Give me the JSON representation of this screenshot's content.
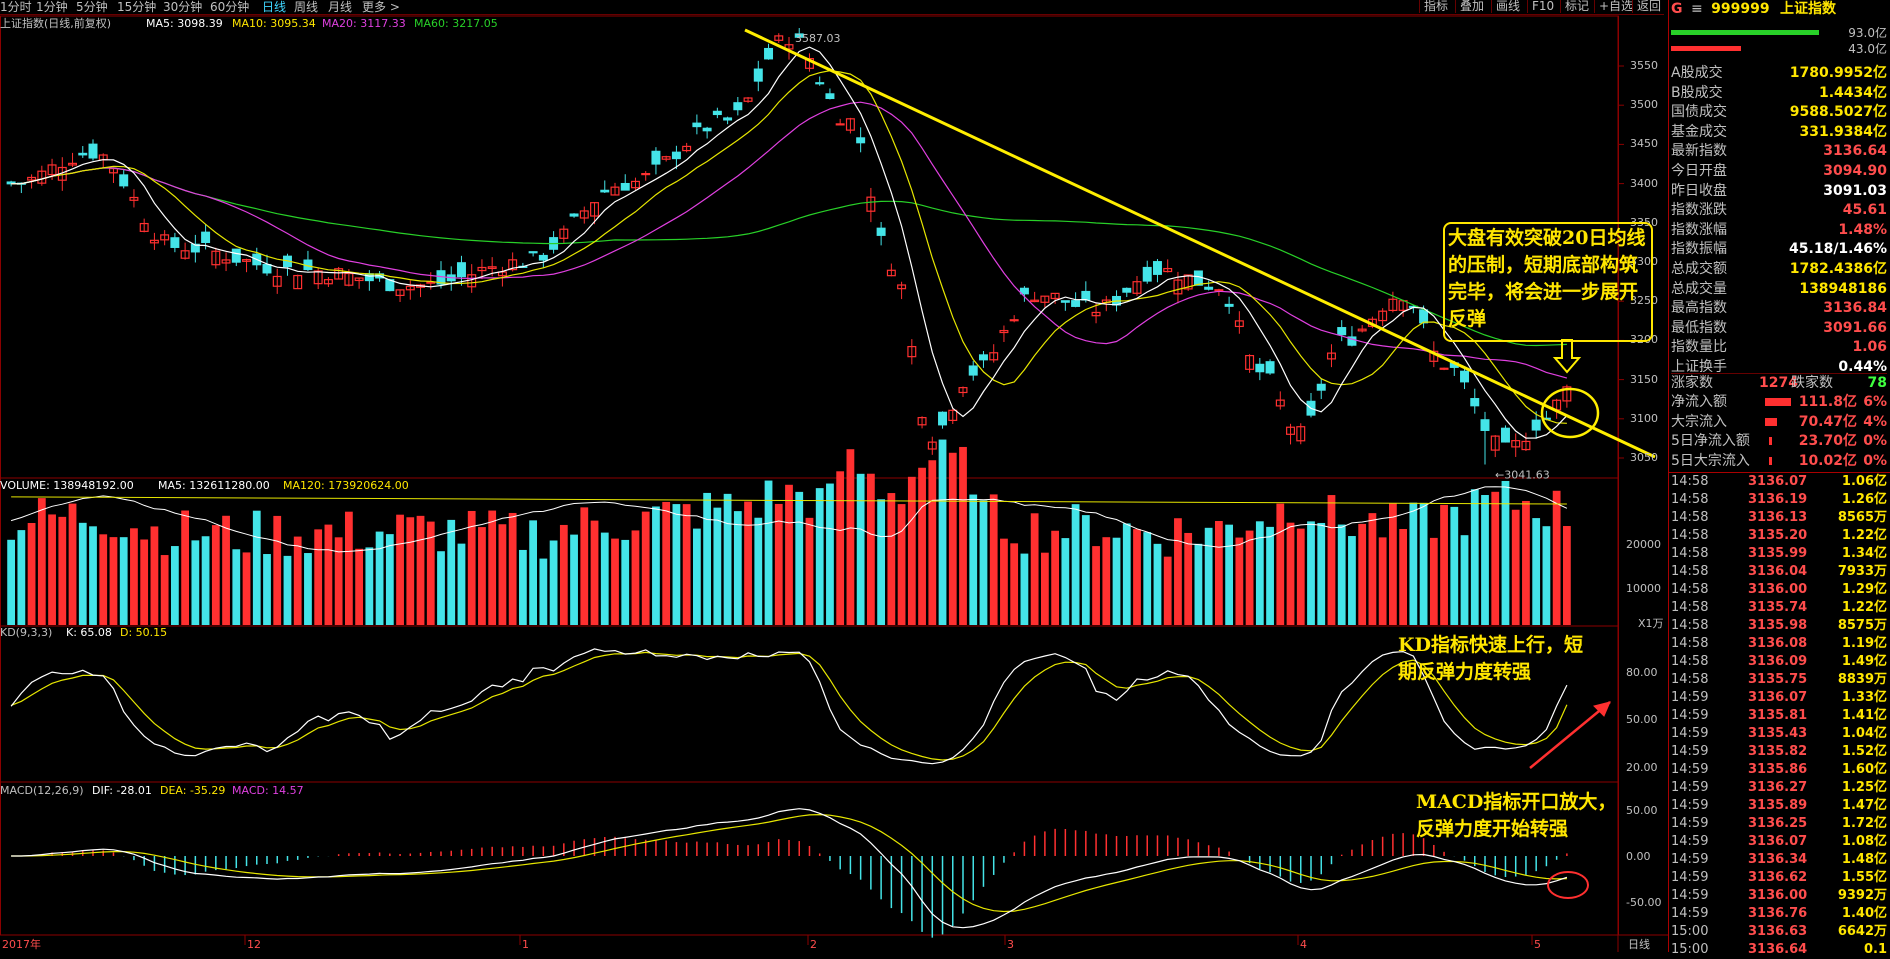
{
  "topbar": {
    "timeframes": [
      "1分时",
      "1分钟",
      "5分钟",
      "15分钟",
      "30分钟",
      "60分钟",
      "日线",
      "周线",
      "月线",
      "更多 >"
    ],
    "active": "日线",
    "right_buttons": [
      "指标",
      "叠加",
      "画线",
      "F10",
      "标记",
      "+自选",
      "返回"
    ]
  },
  "price_panel": {
    "title": "上证指数(日线,前复权)",
    "ma_labels": [
      {
        "text": "MA5: 3098.39",
        "color": "#ffffff"
      },
      {
        "text": "MA10: 3095.34",
        "color": "#ffe600"
      },
      {
        "text": "MA20: 3117.33",
        "color": "#e040e0"
      },
      {
        "text": "MA60: 3217.05",
        "color": "#28d028"
      }
    ],
    "high_mark": "3587.03",
    "low_mark": "3041.63",
    "y_ticks": [
      "3550",
      "3500",
      "3450",
      "3400",
      "3350",
      "3300",
      "3250",
      "3200",
      "3150",
      "3100",
      "3050"
    ]
  },
  "volume_panel": {
    "labels": [
      {
        "text": "VOLUME: 138948192.00",
        "color": "#ffffff"
      },
      {
        "text": "MA5: 132611280.00",
        "color": "#ffffff"
      },
      {
        "text": "MA120: 173920624.00",
        "color": "#ffe600"
      }
    ],
    "y_ticks": [
      "20000",
      "10000"
    ],
    "unit": "X1万"
  },
  "kd_panel": {
    "labels": [
      {
        "text": "KD(9,3,3)",
        "color": "#c0c0c0"
      },
      {
        "text": "K: 65.08",
        "color": "#ffffff"
      },
      {
        "text": "D: 50.15",
        "color": "#ffe600"
      }
    ],
    "y_ticks": [
      "80.00",
      "50.00",
      "20.00"
    ]
  },
  "macd_panel": {
    "labels": [
      {
        "text": "MACD(12,26,9)",
        "color": "#c0c0c0"
      },
      {
        "text": "DIF: -28.01",
        "color": "#ffffff"
      },
      {
        "text": "DEA: -35.29",
        "color": "#ffe600"
      },
      {
        "text": "MACD: 14.57",
        "color": "#e040e0"
      }
    ],
    "y_ticks": [
      "50.00",
      "0.00",
      "-50.00"
    ]
  },
  "x_axis": [
    "2017年",
    "12",
    "1",
    "2",
    "3",
    "4",
    "5"
  ],
  "x_axis_right": "日线",
  "annotations": {
    "box_text": "大盘有效突破20日均线的压制，短期底部构筑完毕，将会进一步展开反弹",
    "kd_text_1": "KD指标快速上行，短",
    "kd_text_2": "期反弹力度转强",
    "macd_text_1": "MACD指标开口放大，",
    "macd_text_2": "反弹力度开始转强"
  },
  "side_panel": {
    "code": "999999",
    "name": "上证指数",
    "flag": "G",
    "bar_values": [
      "93.0亿",
      "43.0亿"
    ],
    "stats": [
      {
        "k": "A股成交",
        "v": "1780.9952亿",
        "c": "#ffe600"
      },
      {
        "k": "B股成交",
        "v": "1.4434亿",
        "c": "#ffe600"
      },
      {
        "k": "国债成交",
        "v": "9588.5027亿",
        "c": "#ffe600"
      },
      {
        "k": "基金成交",
        "v": "331.9384亿",
        "c": "#ffe600"
      },
      {
        "k": "最新指数",
        "v": "3136.64",
        "c": "#ff4d4d"
      },
      {
        "k": "今日开盘",
        "v": "3094.90",
        "c": "#ff4d4d"
      },
      {
        "k": "昨日收盘",
        "v": "3091.03",
        "c": "#ffffff"
      },
      {
        "k": "指数涨跌",
        "v": "45.61",
        "c": "#ff4d4d"
      },
      {
        "k": "指数涨幅",
        "v": "1.48%",
        "c": "#ff4d4d"
      },
      {
        "k": "指数振幅",
        "v": "45.18/1.46%",
        "c": "#ffffff"
      },
      {
        "k": "总成交额",
        "v": "1782.4386亿",
        "c": "#ffe600"
      },
      {
        "k": "总成交量",
        "v": "138948186",
        "c": "#ffe600"
      },
      {
        "k": "最高指数",
        "v": "3136.84",
        "c": "#ff4d4d"
      },
      {
        "k": "最低指数",
        "v": "3091.66",
        "c": "#ff4d4d"
      },
      {
        "k": "指数量比",
        "v": "1.06",
        "c": "#ff4d4d"
      },
      {
        "k": "上证换手",
        "v": "0.44%",
        "c": "#ffffff"
      }
    ],
    "up_label": "涨家数",
    "up_value": "1274",
    "down_label": "跌家数",
    "down_value": "78",
    "flows": [
      {
        "k": "净流入额",
        "v": "111.8亿",
        "p": "6%"
      },
      {
        "k": "大宗流入",
        "v": "70.47亿",
        "p": "4%"
      },
      {
        "k": "5日净流入额",
        "v": "23.70亿",
        "p": "0%"
      },
      {
        "k": "5日大宗流入",
        "v": "10.02亿",
        "p": "0%"
      }
    ],
    "ticks": [
      [
        "14:58",
        "3136.07",
        "1.06亿"
      ],
      [
        "14:58",
        "3136.19",
        "1.26亿"
      ],
      [
        "14:58",
        "3136.13",
        "8565万"
      ],
      [
        "14:58",
        "3135.20",
        "1.22亿"
      ],
      [
        "14:58",
        "3135.99",
        "1.34亿"
      ],
      [
        "14:58",
        "3136.04",
        "7933万"
      ],
      [
        "14:58",
        "3136.00",
        "1.29亿"
      ],
      [
        "14:58",
        "3135.74",
        "1.22亿"
      ],
      [
        "14:58",
        "3135.98",
        "8575万"
      ],
      [
        "14:58",
        "3136.08",
        "1.19亿"
      ],
      [
        "14:58",
        "3136.09",
        "1.49亿"
      ],
      [
        "14:58",
        "3135.75",
        "8839万"
      ],
      [
        "14:59",
        "3136.07",
        "1.33亿"
      ],
      [
        "14:59",
        "3135.81",
        "1.41亿"
      ],
      [
        "14:59",
        "3135.43",
        "1.04亿"
      ],
      [
        "14:59",
        "3135.82",
        "1.52亿"
      ],
      [
        "14:59",
        "3135.86",
        "1.60亿"
      ],
      [
        "14:59",
        "3136.27",
        "1.25亿"
      ],
      [
        "14:59",
        "3135.89",
        "1.47亿"
      ],
      [
        "14:59",
        "3136.25",
        "1.72亿"
      ],
      [
        "14:59",
        "3136.07",
        "1.08亿"
      ],
      [
        "14:59",
        "3136.34",
        "1.48亿"
      ],
      [
        "14:59",
        "3136.62",
        "1.55亿"
      ],
      [
        "14:59",
        "3136.00",
        "9392万"
      ],
      [
        "14:59",
        "3136.76",
        "1.40亿"
      ],
      [
        "15:00",
        "3136.63",
        "6642万"
      ],
      [
        "15:00",
        "3136.64",
        "0.1"
      ]
    ]
  },
  "chart_data": {
    "type": "candlestick",
    "title": "上证指数(日线,前复权)",
    "x_labels": [
      "2017年",
      "12",
      "1",
      "2",
      "3",
      "4",
      "5"
    ],
    "ylim": [
      3020,
      3600
    ],
    "anchor_prices": [
      {
        "x": "2017年",
        "close": 3400
      },
      {
        "x": "12",
        "close": 3290
      },
      {
        "x": "1",
        "close": 3300
      },
      {
        "x": "peak",
        "close": 3587.03
      },
      {
        "x": "2",
        "close": 3180
      },
      {
        "x": "3",
        "close": 3280
      },
      {
        "x": "4",
        "close": 3130
      },
      {
        "x": "low",
        "close": 3041.63
      },
      {
        "x": "last",
        "close": 3136.64
      }
    ],
    "kd_ylim": [
      0,
      100
    ],
    "macd_ylim": [
      -60,
      60
    ]
  }
}
